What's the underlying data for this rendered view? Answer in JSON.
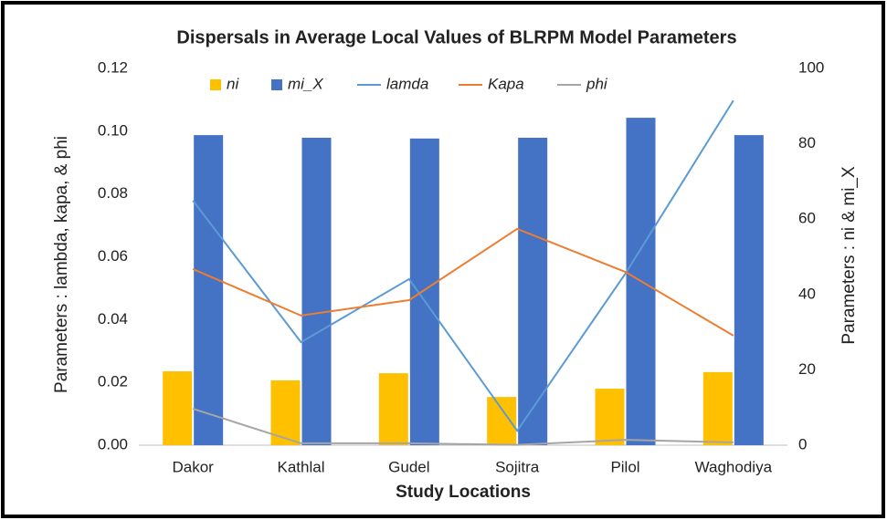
{
  "chart_data": {
    "type": "combo",
    "title": "Dispersals in Average Local Values of BLRPM Model Parameters",
    "x_label": "Study Locations",
    "y_label": "Parameters : lambda, kapa, & phi",
    "y2_label": "Parameters : ni & mi_X",
    "categories": [
      "Dakor",
      "Kathlal",
      "Gudel",
      "Sojitra",
      "Pilol",
      "Waghodiya"
    ],
    "series": [
      {
        "name": "ni",
        "type": "bar",
        "axis": "y2",
        "color": "#ffc000",
        "values": [
          19.6,
          17.2,
          19.1,
          12.8,
          15.0,
          19.4
        ]
      },
      {
        "name": "mi_X",
        "type": "bar",
        "axis": "y2",
        "color": "#4472c4",
        "values": [
          82.3,
          81.6,
          81.4,
          81.6,
          86.9,
          82.3
        ]
      },
      {
        "name": "lamda",
        "type": "line",
        "color": "#5b9bd5",
        "values": [
          0.0779,
          0.0328,
          0.0529,
          0.0046,
          0.0546,
          0.1098
        ]
      },
      {
        "name": "Kapa",
        "type": "line",
        "color": "#ed7d31",
        "values": [
          0.0561,
          0.0413,
          0.0462,
          0.0689,
          0.0552,
          0.0349
        ]
      },
      {
        "name": "phi",
        "type": "line",
        "color": "#a5a5a5",
        "values": [
          0.0116,
          0.0006,
          0.0006,
          0.0001,
          0.0017,
          0.0009
        ]
      }
    ],
    "ylim": [
      0,
      0.12
    ],
    "yticks": [
      {
        "value": 0,
        "label": "0.00"
      },
      {
        "value": 0.02,
        "label": "0.02"
      },
      {
        "value": 0.04,
        "label": "0.04"
      },
      {
        "value": 0.06,
        "label": "0.06"
      },
      {
        "value": 0.08,
        "label": "0.08"
      },
      {
        "value": 0.1,
        "label": "0.10"
      },
      {
        "value": 0.12,
        "label": "0.12"
      }
    ],
    "y2lim": [
      0,
      100
    ],
    "y2ticks": [
      0,
      20,
      40,
      60,
      80,
      100
    ],
    "grid": false,
    "legend": "top"
  }
}
